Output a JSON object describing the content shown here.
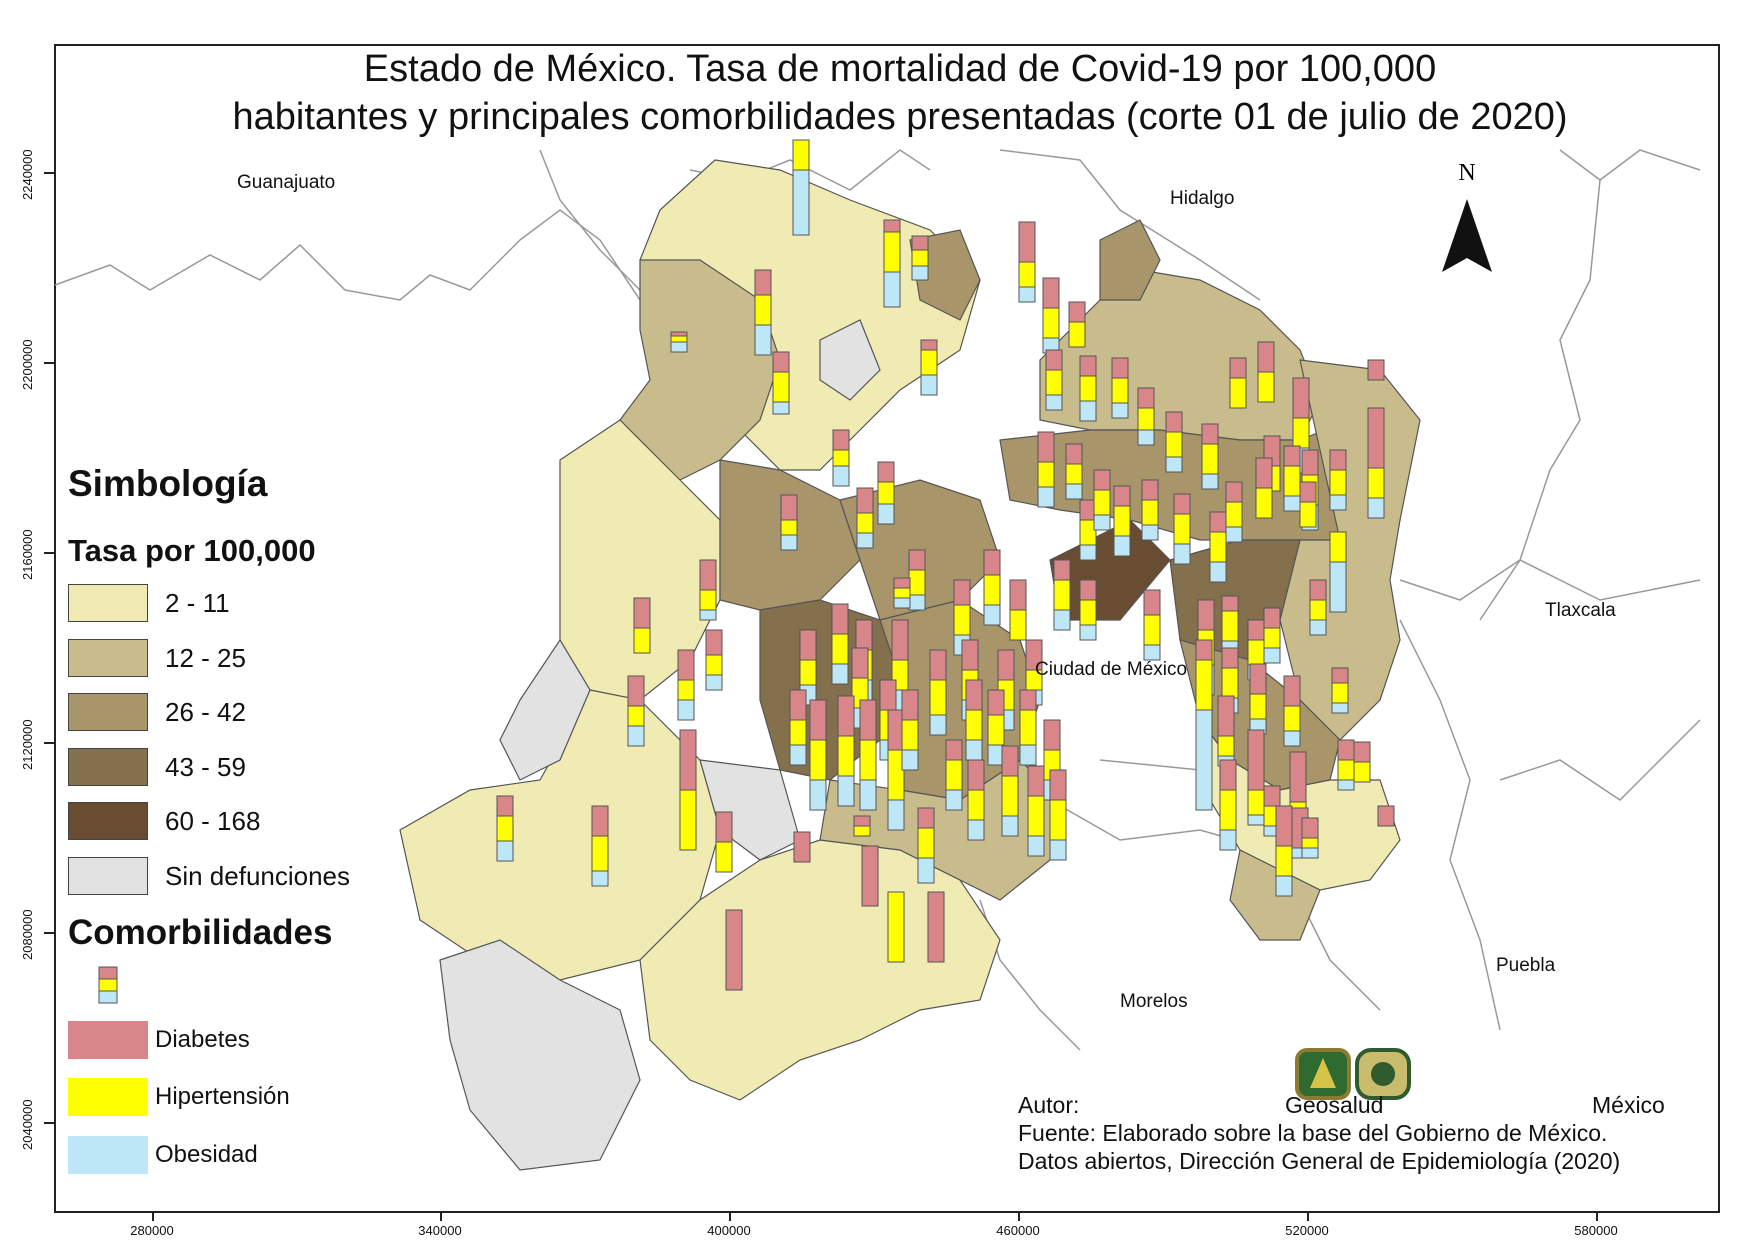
{
  "title_line1": "Estado de México. Tasa de mortalidad de Covid-19 por 100,000",
  "title_line2": "habitantes y principales comorbilidades presentadas (corte 01 de julio de 2020)",
  "north_label": "N",
  "axes": {
    "y_ticks": [
      "2240000",
      "2200000",
      "2160000",
      "2120000",
      "2080000",
      "2040000"
    ],
    "x_ticks": [
      "280000",
      "340000",
      "400000",
      "460000",
      "520000",
      "580000"
    ]
  },
  "places": {
    "guanajuato": "Guanajuato",
    "hidalgo": "Hidalgo",
    "tlaxcala": "Tlaxcala",
    "cdmx": "Ciudad de México",
    "morelos": "Morelos",
    "puebla": "Puebla"
  },
  "legend": {
    "title": "Simbología",
    "rate_title": "Tasa por 100,000",
    "classes": [
      {
        "label": "2 - 11",
        "color": "#f0ebb2"
      },
      {
        "label": "12 - 25",
        "color": "#c9bc8c"
      },
      {
        "label": "26 - 42",
        "color": "#a8956a"
      },
      {
        "label": "43 - 59",
        "color": "#85704d"
      },
      {
        "label": "60 - 168",
        "color": "#684d33"
      },
      {
        "label": "Sin defunciones",
        "color": "#e2e2e2"
      }
    ],
    "comorb_title": "Comorbilidades",
    "comorbidities": [
      {
        "label": "Diabetes",
        "color": "#d9868b"
      },
      {
        "label": "Hipertensión",
        "color": "#ffff00"
      },
      {
        "label": "Obesidad",
        "color": "#bde6f7"
      }
    ]
  },
  "credits": {
    "autor_label": "Autor:",
    "autor_name": "Geosalud",
    "country": "México",
    "source1": "Fuente: Elaborado sobre la base del Gobierno de México.",
    "source2": "Datos abiertos, Dirección General de Epidemiología (2020)"
  }
}
